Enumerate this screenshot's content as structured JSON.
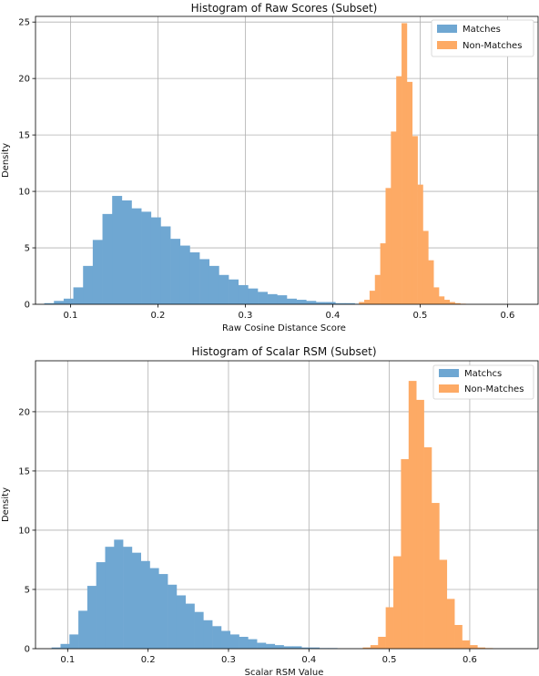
{
  "colors": {
    "matches": "#6fa7d2",
    "nonmatches": "#fdaa65"
  },
  "chart_data": [
    {
      "type": "bar",
      "title": "Histogram of Raw Scores (Subset)",
      "xlabel": "Raw Cosine Distance Score",
      "ylabel": "Density",
      "xlim": [
        0.06,
        0.635
      ],
      "ylim": [
        0,
        25.5
      ],
      "xticks": [
        0.1,
        0.2,
        0.3,
        0.4,
        0.5,
        0.6
      ],
      "xtick_labels": [
        "0.1",
        "0.2",
        "0.3",
        "0.4",
        "0.5",
        "0.6"
      ],
      "yticks": [
        0,
        5,
        10,
        15,
        20,
        25
      ],
      "ytick_labels": [
        "0",
        "5",
        "10",
        "15",
        "20",
        "25"
      ],
      "grid": true,
      "legend_position": "top-right",
      "series": [
        {
          "name": "Matches",
          "color_key": "matches",
          "bin_start": 0.07,
          "bin_width": 0.0111,
          "values": [
            0.1,
            0.3,
            0.5,
            1.5,
            3.4,
            5.7,
            8.0,
            9.6,
            9.2,
            8.5,
            8.2,
            7.7,
            6.9,
            5.8,
            5.2,
            4.6,
            4.0,
            3.4,
            2.6,
            2.2,
            1.7,
            1.4,
            1.1,
            0.9,
            0.8,
            0.5,
            0.4,
            0.3,
            0.2,
            0.2,
            0.1,
            0.1,
            0.05,
            0.05
          ]
        },
        {
          "name": "Non-Matches",
          "color_key": "nonmatches",
          "bin_start": 0.43,
          "bin_width": 0.0061,
          "values": [
            0.2,
            0.4,
            1.2,
            2.6,
            5.4,
            10.3,
            15.3,
            20.2,
            24.9,
            19.7,
            14.9,
            10.6,
            6.5,
            3.9,
            1.5,
            0.7,
            0.4,
            0.2,
            0.1,
            0.05
          ]
        }
      ]
    },
    {
      "type": "bar",
      "title": "Histogram of Scalar RSM (Subset)",
      "xlabel": "Scalar RSM Value",
      "ylabel": "Density",
      "xlim": [
        0.06,
        0.685
      ],
      "ylim": [
        0,
        24.3
      ],
      "xticks": [
        0.1,
        0.2,
        0.3,
        0.4,
        0.5,
        0.6
      ],
      "xtick_labels": [
        "0.1",
        "0.2",
        "0.3",
        "0.4",
        "0.5",
        "0.6"
      ],
      "yticks": [
        0,
        5,
        10,
        15,
        20
      ],
      "ytick_labels": [
        "0",
        "5",
        "10",
        "15",
        "20"
      ],
      "grid": true,
      "legend_position": "top-right",
      "series": [
        {
          "name": "Matchcs",
          "color_key": "matches",
          "bin_start": 0.08,
          "bin_width": 0.0111,
          "values": [
            0.1,
            0.4,
            1.2,
            3.2,
            5.3,
            7.3,
            8.6,
            9.2,
            8.6,
            8.1,
            7.4,
            6.8,
            6.3,
            5.4,
            4.5,
            3.8,
            3.1,
            2.4,
            1.9,
            1.5,
            1.2,
            1.0,
            0.8,
            0.5,
            0.4,
            0.3,
            0.2,
            0.2,
            0.1,
            0.1,
            0.05,
            0.05
          ]
        },
        {
          "name": "Non-Matches",
          "color_key": "nonmatches",
          "bin_start": 0.467,
          "bin_width": 0.0095,
          "values": [
            0.1,
            0.3,
            1.0,
            3.5,
            7.8,
            16.0,
            22.6,
            21.0,
            17.0,
            12.3,
            7.5,
            4.2,
            2.0,
            0.7,
            0.3,
            0.1,
            0.05
          ]
        }
      ]
    }
  ]
}
